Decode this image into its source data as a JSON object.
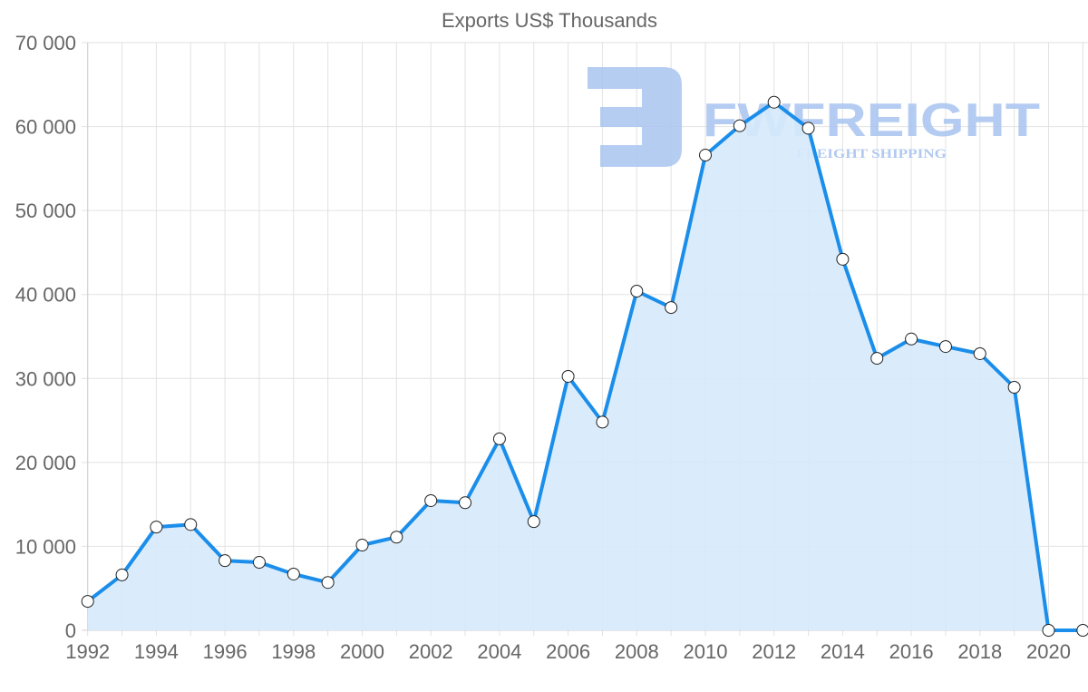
{
  "chart_data": {
    "type": "line",
    "title": "Exports US$ Thousands",
    "xlabel": "",
    "ylabel": "",
    "x": [
      1992,
      1993,
      1994,
      1995,
      1996,
      1997,
      1998,
      1999,
      2000,
      2001,
      2002,
      2003,
      2004,
      2005,
      2006,
      2007,
      2008,
      2009,
      2010,
      2011,
      2012,
      2013,
      2014,
      2015,
      2016,
      2017,
      2018,
      2019,
      2020,
      2021
    ],
    "series": [
      {
        "name": "Exports US$ Thousands",
        "values": [
          3450,
          6600,
          12300,
          12600,
          8300,
          8100,
          6700,
          5700,
          10150,
          11100,
          15450,
          15200,
          22800,
          12950,
          30250,
          24800,
          40400,
          38450,
          56600,
          60100,
          62900,
          59800,
          44200,
          32400,
          34700,
          33800,
          32950,
          28950,
          0,
          0
        ],
        "color": "#1a8eea",
        "fill": "#d6eafc"
      }
    ],
    "ylim": [
      0,
      70000
    ],
    "y_ticks": [
      "0",
      "10 000",
      "20 000",
      "30 000",
      "40 000",
      "50 000",
      "60 000",
      "70 000"
    ],
    "x_ticks": [
      "1992",
      "1994",
      "1996",
      "1998",
      "2000",
      "2002",
      "2004",
      "2006",
      "2008",
      "2010",
      "2012",
      "2014",
      "2016",
      "2018",
      "2020"
    ],
    "grid": true,
    "legend": "none",
    "filled_area": true
  },
  "watermark": {
    "brand": "FWFREIGHT",
    "tagline": "FREIGHT SHIPPING",
    "color": "#a9c4f0"
  }
}
